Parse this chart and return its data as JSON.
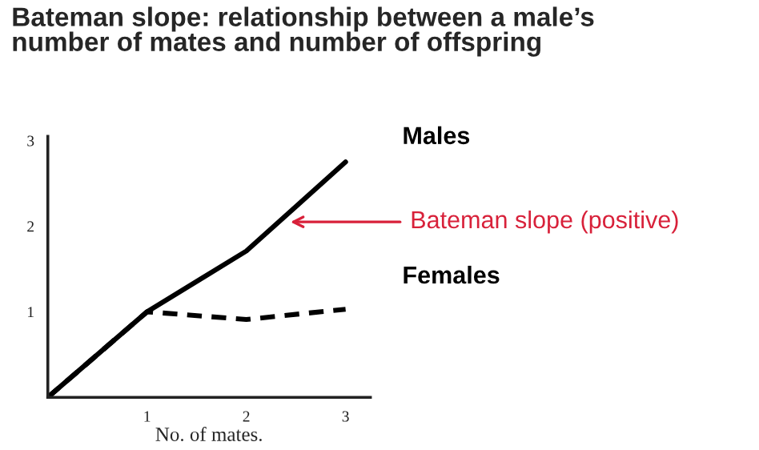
{
  "chart_data": {
    "type": "line",
    "title": "Bateman slope: relationship between a male’s number of mates and number of offspring",
    "xlabel": "No. of mates.",
    "x": [
      0,
      1,
      2,
      3
    ],
    "series": [
      {
        "name": "Males",
        "color": "#000000",
        "values": [
          0,
          1.0,
          1.71,
          2.75
        ],
        "line_style": "solid"
      },
      {
        "name": "Females",
        "color": "#000000",
        "values": [
          0,
          1.0,
          0.91,
          1.03
        ],
        "line_style": "dashed"
      }
    ],
    "xlim": [
      0,
      3.25
    ],
    "ylim": [
      0,
      3.05
    ],
    "xticks": [
      1,
      2,
      3
    ],
    "yticks": [
      1,
      2,
      3
    ],
    "grid": false,
    "legend": "right",
    "marker": "none",
    "annotations": [
      {
        "text": "Bateman slope (positive)",
        "x": 2.4,
        "y": 2.05
      }
    ]
  }
}
